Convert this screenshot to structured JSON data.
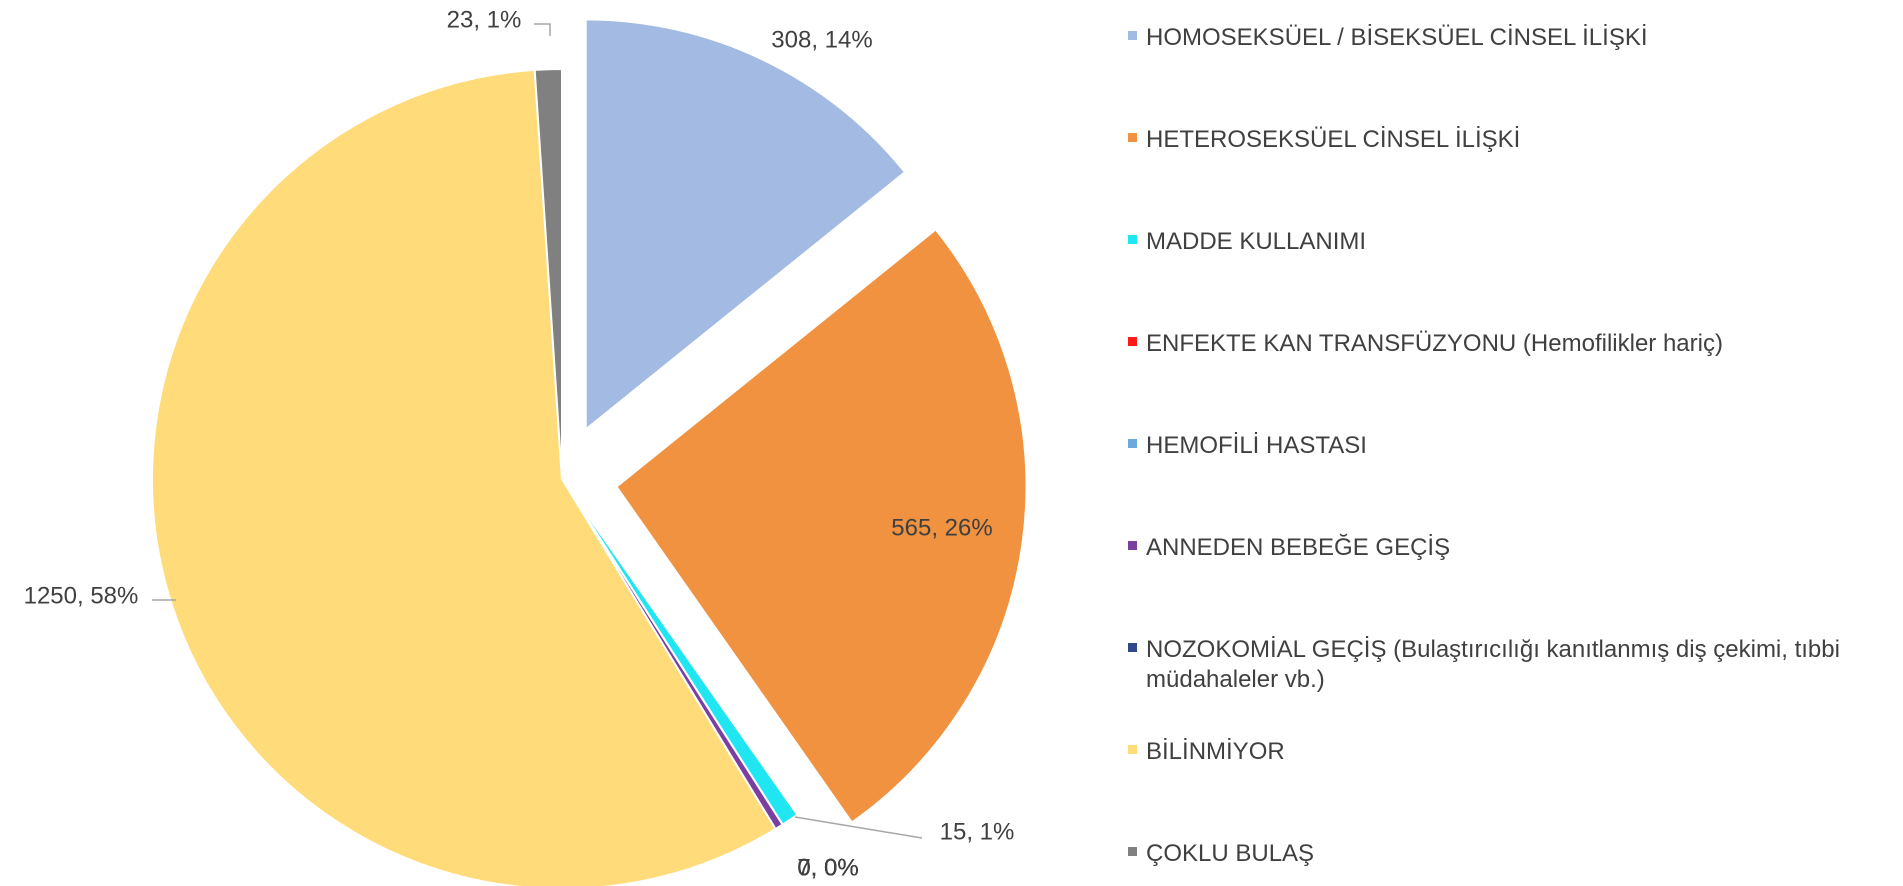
{
  "chart_data": {
    "type": "pie",
    "categories": [
      "HOMOSEKSÜEL / BİSEKSÜEL CİNSEL İLİŞKİ",
      "HETEROSEKSÜEL CİNSEL İLİŞKİ",
      "MADDE KULLANIMI",
      "ENFEKTE KAN TRANSFÜZYONU (Hemofilikler hariç)",
      "HEMOFİLİ HASTASI",
      "ANNEDEN BEBEĞE GEÇİŞ",
      "NOZOKOMİAL GEÇİŞ (Bulaştırıcılığı kanıtlanmış diş çekimi, tıbbi müdahaleler vb.)",
      "BİLİNMİYOR",
      "ÇOKLU BULAŞ"
    ],
    "values": [
      308,
      565,
      15,
      0,
      0,
      7,
      0,
      1250,
      23
    ],
    "value_labels": [
      "308, 14%",
      "565, 26%",
      "15, 1%",
      "0, 0%",
      "0, 0%",
      "7, 0%",
      "0, 0%",
      "1250, 58%",
      "23, 1%"
    ],
    "colors": [
      "#a3bbe3",
      "#f0923f",
      "#1fe6f0",
      "#ff1a1a",
      "#6fa8dc",
      "#7b3fa0",
      "#2e4a8a",
      "#ffdb7a",
      "#808080"
    ],
    "legend": "right"
  }
}
